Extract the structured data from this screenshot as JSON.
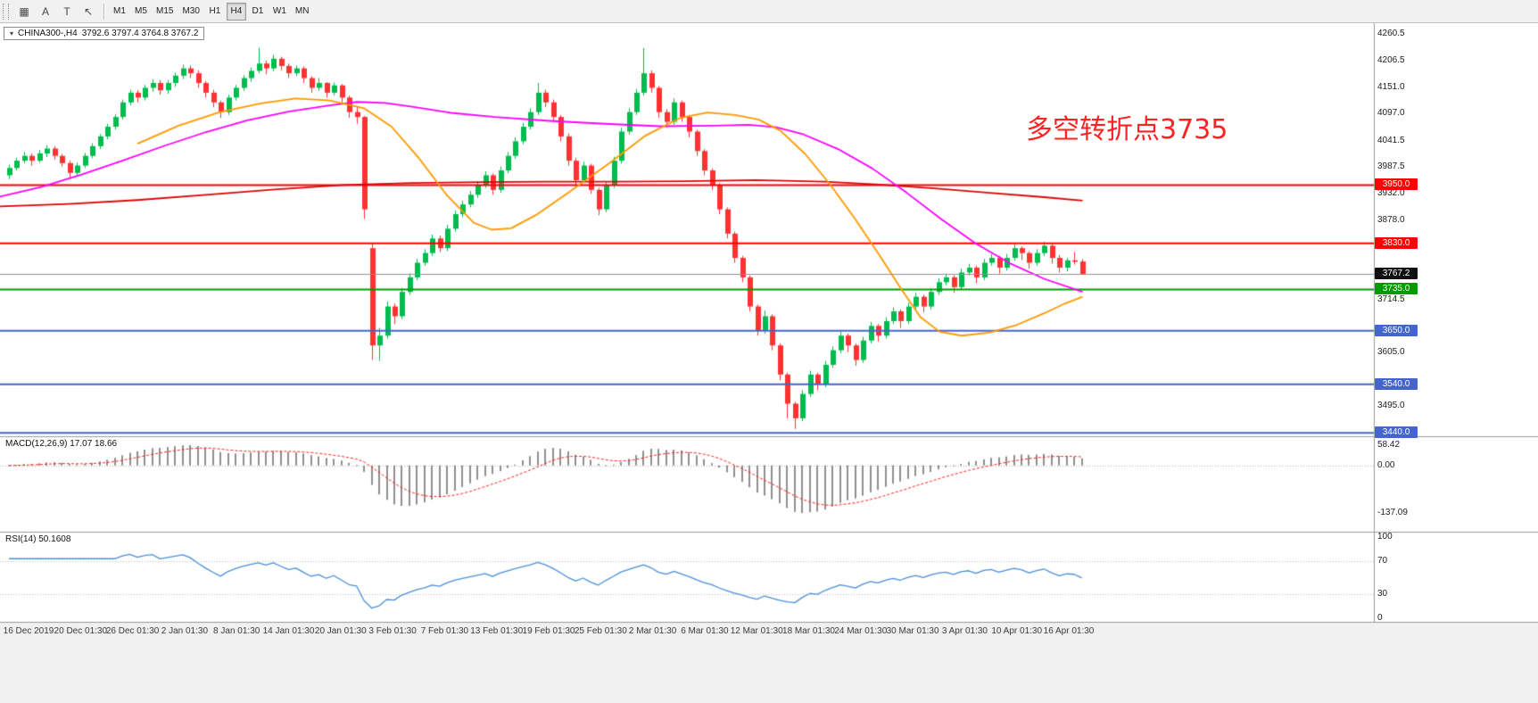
{
  "toolbar": {
    "left_buttons": [
      {
        "name": "chart-grid",
        "glyph": "▦"
      },
      {
        "name": "cursor-a",
        "glyph": "A"
      },
      {
        "name": "text-tool",
        "glyph": "T"
      },
      {
        "name": "draw-arrow",
        "glyph": "↖"
      }
    ],
    "timeframes": [
      "M1",
      "M5",
      "M15",
      "M30",
      "H1",
      "H4",
      "D1",
      "W1",
      "MN"
    ],
    "active_timeframe": "H4"
  },
  "chart": {
    "title_symbol": "CHINA300-,H4",
    "title_ohlc": "3792.6 3797.4 3764.8 3767.2",
    "annotation": {
      "text": "多空转折点3735",
      "color": "#ff2222"
    }
  },
  "chart_data": {
    "type": "candlestick",
    "symbol": "CHINA300-",
    "period": "H4",
    "last_ohlc": [
      3792.6,
      3797.4,
      3764.8,
      3767.2
    ],
    "price_range": [
      3433,
      4283
    ],
    "up_color": "#00bb4e",
    "down_color": "#ff3232",
    "y_ticks": [
      {
        "label": "4260.5",
        "price": 4260.5
      },
      {
        "label": "4206.5",
        "price": 4206.5
      },
      {
        "label": "4151.0",
        "price": 4151.0
      },
      {
        "label": "4097.0",
        "price": 4097.0
      },
      {
        "label": "4041.5",
        "price": 4041.5
      },
      {
        "label": "3987.5",
        "price": 3987.5
      },
      {
        "label": "3932.0",
        "price": 3932.0
      },
      {
        "label": "3878.0",
        "price": 3878.0
      },
      {
        "label": "3714.5",
        "price": 3714.5
      },
      {
        "label": "3605.0",
        "price": 3605.0
      },
      {
        "label": "3495.0",
        "price": 3495.0
      }
    ],
    "hlines": [
      {
        "label": "3950.0",
        "price": 3950,
        "color": "#ff0000"
      },
      {
        "label": "3830.0",
        "price": 3830,
        "color": "#ff0000"
      },
      {
        "label": "3735.0",
        "price": 3735,
        "color": "#009b00"
      },
      {
        "label": "3650.0",
        "price": 3650,
        "color": "#4466cc"
      },
      {
        "label": "3540.0",
        "price": 3540,
        "color": "#4466cc"
      },
      {
        "label": "3440.0",
        "price": 3440,
        "color": "#4466cc"
      }
    ],
    "bid": {
      "label": "3767.2",
      "price": 3767.2,
      "line_color": "#909090",
      "badge_color": "#101010"
    },
    "overlays": [
      {
        "name": "ma-slow-red",
        "color": "#dd0404",
        "points": [
          [
            0.0,
            3906
          ],
          [
            0.05,
            3911
          ],
          [
            0.1,
            3919
          ],
          [
            0.15,
            3930
          ],
          [
            0.2,
            3941
          ],
          [
            0.25,
            3950
          ],
          [
            0.3,
            3954
          ],
          [
            0.35,
            3956
          ],
          [
            0.4,
            3957
          ],
          [
            0.45,
            3957
          ],
          [
            0.5,
            3958
          ],
          [
            0.55,
            3960
          ],
          [
            0.6,
            3957
          ],
          [
            0.64,
            3951
          ],
          [
            0.68,
            3943
          ],
          [
            0.72,
            3934
          ],
          [
            0.76,
            3925
          ],
          [
            0.788,
            3918
          ]
        ]
      },
      {
        "name": "ma-medium-magenta",
        "color": "#ff00ff",
        "points": [
          [
            0.0,
            3926
          ],
          [
            0.03,
            3946
          ],
          [
            0.06,
            3972
          ],
          [
            0.09,
            4001
          ],
          [
            0.12,
            4031
          ],
          [
            0.15,
            4059
          ],
          [
            0.18,
            4083
          ],
          [
            0.21,
            4101
          ],
          [
            0.24,
            4114
          ],
          [
            0.26,
            4121
          ],
          [
            0.28,
            4119
          ],
          [
            0.3,
            4111
          ],
          [
            0.33,
            4098
          ],
          [
            0.36,
            4090
          ],
          [
            0.4,
            4082
          ],
          [
            0.44,
            4076
          ],
          [
            0.48,
            4071
          ],
          [
            0.52,
            4072
          ],
          [
            0.545,
            4074
          ],
          [
            0.565,
            4069
          ],
          [
            0.585,
            4054
          ],
          [
            0.61,
            4024
          ],
          [
            0.635,
            3984
          ],
          [
            0.66,
            3934
          ],
          [
            0.685,
            3880
          ],
          [
            0.71,
            3830
          ],
          [
            0.735,
            3789
          ],
          [
            0.76,
            3757
          ],
          [
            0.788,
            3730
          ]
        ]
      },
      {
        "name": "ma-fast-orange",
        "color": "#ff9900",
        "points": [
          [
            0.1,
            4035
          ],
          [
            0.13,
            4072
          ],
          [
            0.16,
            4100
          ],
          [
            0.19,
            4118
          ],
          [
            0.215,
            4128
          ],
          [
            0.24,
            4124
          ],
          [
            0.265,
            4108
          ],
          [
            0.285,
            4070
          ],
          [
            0.305,
            4005
          ],
          [
            0.325,
            3930
          ],
          [
            0.345,
            3872
          ],
          [
            0.358,
            3858
          ],
          [
            0.372,
            3861
          ],
          [
            0.39,
            3888
          ],
          [
            0.415,
            3937
          ],
          [
            0.445,
            3998
          ],
          [
            0.47,
            4052
          ],
          [
            0.495,
            4088
          ],
          [
            0.515,
            4099
          ],
          [
            0.535,
            4094
          ],
          [
            0.552,
            4085
          ],
          [
            0.568,
            4062
          ],
          [
            0.586,
            4014
          ],
          [
            0.604,
            3952
          ],
          [
            0.622,
            3882
          ],
          [
            0.64,
            3806
          ],
          [
            0.656,
            3736
          ],
          [
            0.67,
            3678
          ],
          [
            0.684,
            3648
          ],
          [
            0.7,
            3640
          ],
          [
            0.72,
            3646
          ],
          [
            0.74,
            3662
          ],
          [
            0.76,
            3686
          ],
          [
            0.775,
            3706
          ],
          [
            0.788,
            3720
          ]
        ]
      }
    ],
    "candles": [
      [
        3970,
        3992,
        3962,
        3985
      ],
      [
        3985,
        4006,
        3980,
        4000
      ],
      [
        4000,
        4018,
        3995,
        4010
      ],
      [
        4010,
        4015,
        3990,
        4000
      ],
      [
        4000,
        4022,
        3996,
        4015
      ],
      [
        4015,
        4032,
        4008,
        4025
      ],
      [
        4025,
        4030,
        4002,
        4010
      ],
      [
        4010,
        4014,
        3988,
        3995
      ],
      [
        3995,
        4000,
        3965,
        3975
      ],
      [
        3975,
        3996,
        3970,
        3990
      ],
      [
        3990,
        4016,
        3985,
        4010
      ],
      [
        4010,
        4036,
        4005,
        4030
      ],
      [
        4030,
        4055,
        4024,
        4050
      ],
      [
        4050,
        4076,
        4044,
        4070
      ],
      [
        4070,
        4096,
        4064,
        4090
      ],
      [
        4090,
        4126,
        4085,
        4120
      ],
      [
        4120,
        4146,
        4114,
        4140
      ],
      [
        4140,
        4145,
        4120,
        4130
      ],
      [
        4130,
        4156,
        4124,
        4150
      ],
      [
        4150,
        4168,
        4142,
        4160
      ],
      [
        4160,
        4166,
        4136,
        4145
      ],
      [
        4145,
        4166,
        4138,
        4160
      ],
      [
        4160,
        4181,
        4152,
        4175
      ],
      [
        4175,
        4198,
        4168,
        4190
      ],
      [
        4190,
        4196,
        4170,
        4180
      ],
      [
        4180,
        4186,
        4150,
        4160
      ],
      [
        4160,
        4164,
        4130,
        4140
      ],
      [
        4140,
        4146,
        4110,
        4120
      ],
      [
        4120,
        4124,
        4088,
        4100
      ],
      [
        4100,
        4136,
        4094,
        4130
      ],
      [
        4130,
        4156,
        4124,
        4150
      ],
      [
        4150,
        4176,
        4144,
        4170
      ],
      [
        4170,
        4192,
        4162,
        4185
      ],
      [
        4185,
        4232,
        4180,
        4200
      ],
      [
        4200,
        4206,
        4178,
        4190
      ],
      [
        4190,
        4218,
        4184,
        4210
      ],
      [
        4210,
        4214,
        4186,
        4195
      ],
      [
        4195,
        4200,
        4170,
        4180
      ],
      [
        4180,
        4196,
        4174,
        4190
      ],
      [
        4190,
        4194,
        4160,
        4170
      ],
      [
        4170,
        4174,
        4140,
        4150
      ],
      [
        4150,
        4170,
        4144,
        4160
      ],
      [
        4160,
        4162,
        4130,
        4140
      ],
      [
        4140,
        4161,
        4134,
        4155
      ],
      [
        4155,
        4158,
        4120,
        4130
      ],
      [
        4130,
        4134,
        4088,
        4100
      ],
      [
        4100,
        4112,
        4076,
        4090
      ],
      [
        4090,
        4092,
        3880,
        3900
      ],
      [
        3820,
        3830,
        3590,
        3620
      ],
      [
        3620,
        3656,
        3588,
        3640
      ],
      [
        3640,
        3710,
        3634,
        3700
      ],
      [
        3700,
        3706,
        3664,
        3680
      ],
      [
        3680,
        3738,
        3674,
        3730
      ],
      [
        3730,
        3768,
        3724,
        3760
      ],
      [
        3760,
        3798,
        3754,
        3790
      ],
      [
        3790,
        3818,
        3784,
        3810
      ],
      [
        3810,
        3848,
        3804,
        3840
      ],
      [
        3840,
        3846,
        3812,
        3820
      ],
      [
        3820,
        3868,
        3814,
        3860
      ],
      [
        3860,
        3898,
        3854,
        3890
      ],
      [
        3890,
        3918,
        3884,
        3910
      ],
      [
        3910,
        3938,
        3904,
        3930
      ],
      [
        3930,
        3958,
        3924,
        3950
      ],
      [
        3950,
        3978,
        3944,
        3970
      ],
      [
        3970,
        3974,
        3930,
        3940
      ],
      [
        3940,
        3988,
        3934,
        3980
      ],
      [
        3980,
        4018,
        3974,
        4010
      ],
      [
        4010,
        4048,
        4004,
        4040
      ],
      [
        4040,
        4078,
        4034,
        4070
      ],
      [
        4070,
        4108,
        4064,
        4100
      ],
      [
        4100,
        4160,
        4094,
        4140
      ],
      [
        4140,
        4146,
        4110,
        4120
      ],
      [
        4120,
        4126,
        4080,
        4090
      ],
      [
        4090,
        4094,
        4040,
        4050
      ],
      [
        4050,
        4056,
        3990,
        4000
      ],
      [
        4000,
        4006,
        3946,
        3960
      ],
      [
        3960,
        3998,
        3954,
        3990
      ],
      [
        3990,
        3994,
        3932,
        3940
      ],
      [
        3940,
        3944,
        3888,
        3900
      ],
      [
        3900,
        3958,
        3894,
        3950
      ],
      [
        3950,
        4008,
        3944,
        4000
      ],
      [
        4000,
        4068,
        3994,
        4060
      ],
      [
        4060,
        4108,
        4054,
        4100
      ],
      [
        4100,
        4148,
        4094,
        4140
      ],
      [
        4140,
        4232,
        4134,
        4180
      ],
      [
        4180,
        4186,
        4140,
        4150
      ],
      [
        4150,
        4154,
        4088,
        4100
      ],
      [
        4100,
        4106,
        4068,
        4080
      ],
      [
        4080,
        4128,
        4074,
        4120
      ],
      [
        4120,
        4124,
        4080,
        4090
      ],
      [
        4090,
        4094,
        4048,
        4060
      ],
      [
        4060,
        4064,
        4010,
        4020
      ],
      [
        4020,
        4024,
        3970,
        3980
      ],
      [
        3980,
        3984,
        3940,
        3950
      ],
      [
        3950,
        3954,
        3890,
        3900
      ],
      [
        3900,
        3904,
        3840,
        3850
      ],
      [
        3850,
        3854,
        3790,
        3800
      ],
      [
        3800,
        3804,
        3750,
        3760
      ],
      [
        3760,
        3764,
        3690,
        3700
      ],
      [
        3700,
        3704,
        3640,
        3650
      ],
      [
        3650,
        3692,
        3644,
        3680
      ],
      [
        3680,
        3684,
        3610,
        3620
      ],
      [
        3620,
        3624,
        3548,
        3560
      ],
      [
        3560,
        3564,
        3470,
        3500
      ],
      [
        3500,
        3504,
        3448,
        3470
      ],
      [
        3470,
        3528,
        3464,
        3520
      ],
      [
        3520,
        3568,
        3514,
        3560
      ],
      [
        3560,
        3564,
        3528,
        3540
      ],
      [
        3540,
        3588,
        3534,
        3580
      ],
      [
        3580,
        3618,
        3574,
        3610
      ],
      [
        3610,
        3648,
        3604,
        3640
      ],
      [
        3640,
        3644,
        3606,
        3620
      ],
      [
        3620,
        3624,
        3578,
        3590
      ],
      [
        3590,
        3638,
        3584,
        3630
      ],
      [
        3630,
        3668,
        3624,
        3660
      ],
      [
        3660,
        3664,
        3628,
        3640
      ],
      [
        3640,
        3678,
        3634,
        3670
      ],
      [
        3670,
        3698,
        3664,
        3690
      ],
      [
        3690,
        3694,
        3656,
        3670
      ],
      [
        3670,
        3708,
        3664,
        3700
      ],
      [
        3700,
        3728,
        3694,
        3720
      ],
      [
        3720,
        3724,
        3688,
        3700
      ],
      [
        3700,
        3738,
        3694,
        3730
      ],
      [
        3730,
        3758,
        3724,
        3750
      ],
      [
        3750,
        3768,
        3744,
        3760
      ],
      [
        3760,
        3764,
        3728,
        3740
      ],
      [
        3740,
        3778,
        3734,
        3770
      ],
      [
        3770,
        3788,
        3764,
        3780
      ],
      [
        3780,
        3784,
        3748,
        3760
      ],
      [
        3760,
        3798,
        3754,
        3790
      ],
      [
        3790,
        3808,
        3784,
        3800
      ],
      [
        3800,
        3804,
        3768,
        3780
      ],
      [
        3780,
        3808,
        3774,
        3800
      ],
      [
        3800,
        3828,
        3794,
        3820
      ],
      [
        3820,
        3824,
        3796,
        3810
      ],
      [
        3810,
        3814,
        3778,
        3790
      ],
      [
        3790,
        3818,
        3784,
        3810
      ],
      [
        3810,
        3833,
        3804,
        3825
      ],
      [
        3825,
        3829,
        3788,
        3800
      ],
      [
        3800,
        3806,
        3770,
        3780
      ],
      [
        3780,
        3800,
        3772,
        3795
      ],
      [
        3795,
        3812,
        3786,
        3792
      ],
      [
        3792.6,
        3797.4,
        3764.8,
        3767.2
      ]
    ],
    "time_labels": [
      "16 Dec 2019",
      "20 Dec 01:30",
      "26 Dec 01:30",
      "2 Jan 01:30",
      "8 Jan 01:30",
      "14 Jan 01:30",
      "20 Jan 01:30",
      "3 Feb 01:30",
      "7 Feb 01:30",
      "13 Feb 01:30",
      "19 Feb 01:30",
      "25 Feb 01:30",
      "2 Mar 01:30",
      "6 Mar 01:30",
      "12 Mar 01:30",
      "18 Mar 01:30",
      "24 Mar 01:30",
      "30 Mar 01:30",
      "3 Apr 01:30",
      "10 Apr 01:30",
      "16 Apr 01:30"
    ],
    "indicators": [
      {
        "type": "macd",
        "label": "MACD(12,26,9) 17.07 18.66",
        "fast": 12,
        "slow": 26,
        "signal": 9,
        "max": 58.42,
        "min": -137.09,
        "hist_color": "#8f8f8f",
        "signal_color": "#ff2020",
        "axis_labels": [
          {
            "label": "58.42",
            "value": 58.42
          },
          {
            "label": "0.00",
            "value": 0
          },
          {
            "label": "-137.09",
            "value": -137.09
          }
        ]
      },
      {
        "type": "rsi",
        "label": "RSI(14) 50.1608",
        "period": 14,
        "value": 50.1608,
        "color": "#4a90d9",
        "levels": [
          70,
          30
        ],
        "axis_labels": [
          {
            "label": "100",
            "value": 100
          },
          {
            "label": "70",
            "value": 70
          },
          {
            "label": "30",
            "value": 30
          },
          {
            "label": "0",
            "value": 0
          }
        ]
      }
    ]
  }
}
